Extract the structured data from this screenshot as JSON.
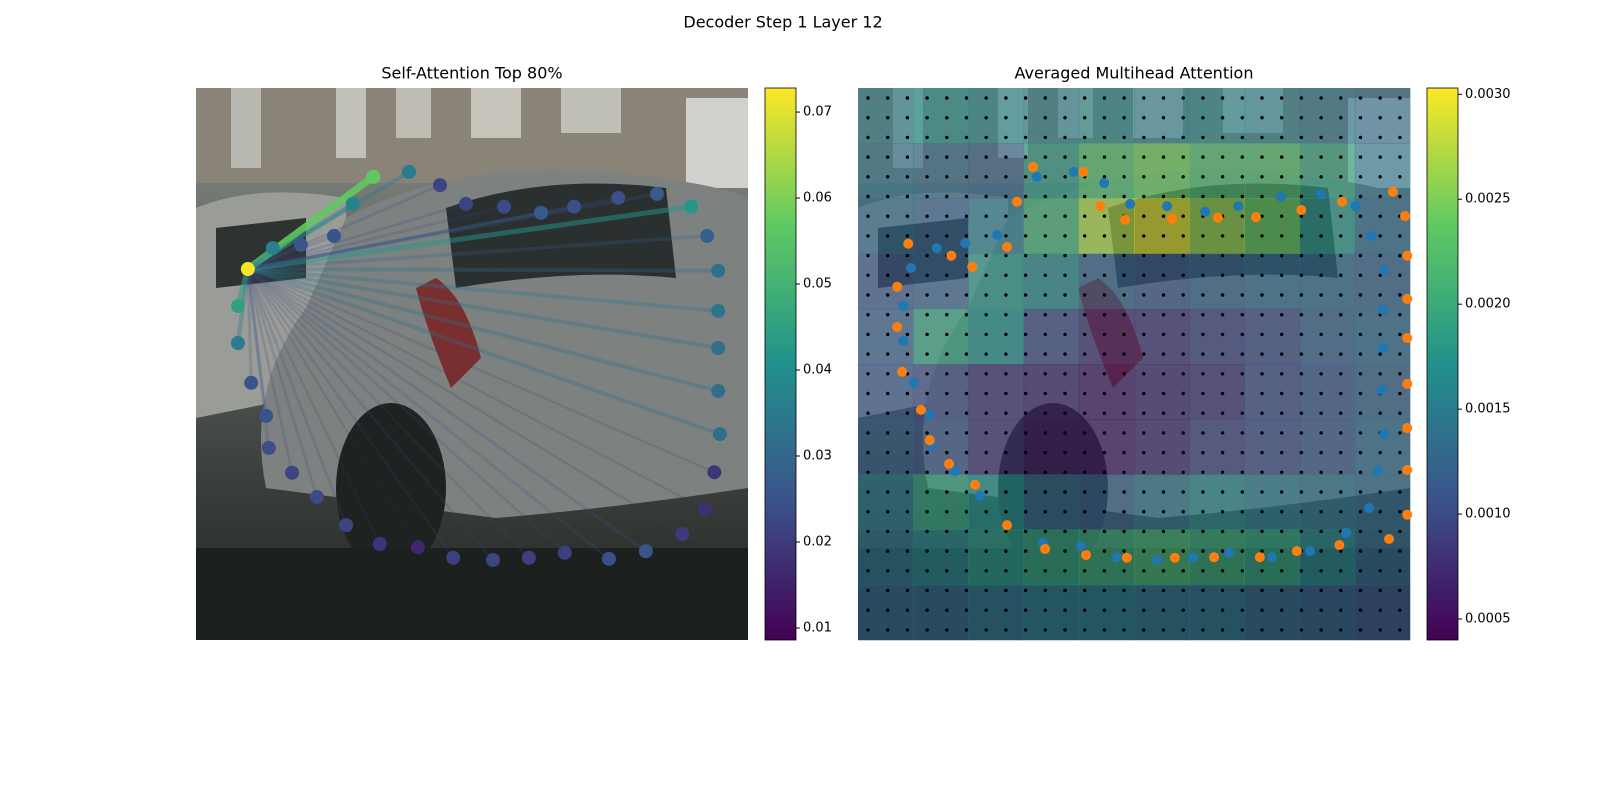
{
  "title": "Decoder Step 1 Layer 12",
  "chart_data": [
    {
      "type": "attention",
      "title": "Self-Attention Top 80%",
      "colormap": "viridis",
      "query_index": 0,
      "xlim": [
        0,
        100
      ],
      "ylim": [
        100,
        0
      ],
      "x": [
        9.4,
        7.6,
        7.6,
        10.0,
        12.7,
        13.2,
        17.4,
        21.9,
        27.2,
        33.3,
        40.2,
        46.6,
        53.8,
        60.3,
        66.8,
        74.8,
        81.5,
        88.1,
        92.2,
        93.9,
        94.9,
        94.6,
        94.6,
        94.6,
        94.6,
        92.6,
        89.7,
        83.5,
        76.5,
        68.5,
        62.5,
        55.8,
        48.9,
        44.2,
        38.6,
        32.1,
        28.4,
        25.0,
        19.0,
        13.9
      ],
      "y": [
        67.2,
        60.5,
        53.8,
        46.6,
        40.6,
        34.8,
        30.3,
        25.9,
        20.8,
        17.4,
        16.8,
        14.9,
        14.5,
        14.9,
        15.8,
        14.7,
        16.1,
        19.2,
        23.7,
        30.4,
        37.3,
        45.1,
        52.9,
        59.6,
        66.9,
        73.2,
        78.5,
        80.8,
        80.1,
        78.5,
        77.4,
        78.5,
        79.0,
        82.4,
        84.8,
        83.9,
        79.0,
        73.2,
        71.6,
        71.0
      ],
      "values": [
        0.072,
        0.045,
        0.035,
        0.025,
        0.025,
        0.024,
        0.022,
        0.023,
        0.022,
        0.019,
        0.016,
        0.021,
        0.022,
        0.021,
        0.021,
        0.024,
        0.025,
        0.02,
        0.018,
        0.019,
        0.032,
        0.032,
        0.032,
        0.033,
        0.032,
        0.028,
        0.042,
        0.027,
        0.024,
        0.024,
        0.027,
        0.023,
        0.022,
        0.022,
        0.035,
        0.057,
        0.037,
        0.025,
        0.026,
        0.036
      ],
      "clim": [
        0.0086,
        0.0728
      ],
      "cticks": [
        0.01,
        0.02,
        0.03,
        0.04,
        0.05,
        0.06,
        0.07
      ]
    },
    {
      "type": "heatmap",
      "title": "Averaged Multihead Attention",
      "colormap": "viridis",
      "xlim": [
        0,
        100
      ],
      "ylim": [
        100,
        0
      ],
      "values": [
        [
          0.0015,
          0.0017,
          0.0016,
          0.0015,
          0.0016,
          0.0015,
          0.0016,
          0.0015,
          0.0014,
          0.0013
        ],
        [
          0.0014,
          0.0013,
          0.0012,
          0.0018,
          0.0022,
          0.0024,
          0.0022,
          0.0022,
          0.0019,
          0.0014
        ],
        [
          0.0013,
          0.0012,
          0.0015,
          0.0021,
          0.0027,
          0.0029,
          0.0026,
          0.0024,
          0.0018,
          0.0013
        ],
        [
          0.0011,
          0.0012,
          0.0018,
          0.0016,
          0.0012,
          0.0011,
          0.0012,
          0.0013,
          0.0013,
          0.0012
        ],
        [
          0.0012,
          0.0019,
          0.0017,
          0.001,
          0.0008,
          0.0008,
          0.0009,
          0.001,
          0.0012,
          0.0013
        ],
        [
          0.0011,
          0.001,
          0.0008,
          0.0007,
          0.0006,
          0.0007,
          0.0008,
          0.001,
          0.0011,
          0.0012
        ],
        [
          0.0012,
          0.0011,
          0.0008,
          0.0006,
          0.0006,
          0.0007,
          0.0009,
          0.001,
          0.0011,
          0.0013
        ],
        [
          0.0015,
          0.0019,
          0.0017,
          0.0013,
          0.0012,
          0.0014,
          0.0016,
          0.0015,
          0.0014,
          0.0013
        ],
        [
          0.0014,
          0.0016,
          0.0018,
          0.0019,
          0.002,
          0.0021,
          0.002,
          0.0019,
          0.0016,
          0.0013
        ],
        [
          0.0013,
          0.0013,
          0.0014,
          0.0015,
          0.0015,
          0.0014,
          0.0014,
          0.0013,
          0.0012,
          0.0011
        ]
      ],
      "clim": [
        0.0004,
        0.00303
      ],
      "cticks": [
        0.0005,
        {
          "value": 0.001,
          "label": "0.0010"
        },
        0.0015,
        {
          "value": 0.002,
          "label": "0.0020"
        },
        0.0025,
        {
          "value": 0.003,
          "label": "0.0030"
        }
      ],
      "series": [
        {
          "color": "#1f77b4",
          "x": [
            8.2,
            8.2,
            9.6,
            14.3,
            19.4,
            25.2,
            32.4,
            39.1,
            44.6,
            49.3,
            56.0,
            62.9,
            68.9,
            76.6,
            83.9,
            90.1,
            93.0,
            95.3,
            95.1,
            95.1,
            94.9,
            95.3,
            94.2,
            92.6,
            88.4,
            81.9,
            75.0,
            67.2,
            60.7,
            54.2,
            46.9,
            40.4,
            33.5,
            22.1,
            17.6,
            13.4,
            13.0,
            10.1
          ],
          "y": [
            54.2,
            60.5,
            67.4,
            71.0,
            71.9,
            73.4,
            83.9,
            84.8,
            82.8,
            79.0,
            78.6,
            77.6,
            78.6,
            80.3,
            80.8,
            78.6,
            73.2,
            67.0,
            59.8,
            52.9,
            45.3,
            37.3,
            30.6,
            23.9,
            19.4,
            16.1,
            15.0,
            15.8,
            14.9,
            14.5,
            15.0,
            17.0,
            17.6,
            26.1,
            30.6,
            35.2,
            40.8,
            46.6
          ]
        },
        {
          "color": "#ff7f0e",
          "x": [
            7.1,
            7.1,
            9.1,
            16.9,
            20.7,
            27.0,
            28.8,
            31.7,
            40.8,
            43.9,
            48.4,
            56.9,
            65.2,
            72.1,
            80.3,
            87.7,
            96.9,
            99.1,
            99.5,
            99.5,
            99.5,
            99.5,
            99.5,
            99.5,
            99.5,
            96.2,
            87.2,
            79.5,
            72.8,
            64.5,
            57.4,
            48.7,
            41.3,
            33.9,
            27.0,
            21.2,
            16.5,
            13.0,
            11.4,
            8.0
          ],
          "y": [
            56.7,
            64.0,
            71.8,
            69.6,
            67.6,
            71.2,
            79.4,
            85.7,
            84.8,
            78.6,
            76.1,
            76.3,
            76.5,
            76.6,
            77.9,
            79.4,
            81.2,
            76.8,
            69.6,
            61.8,
            54.7,
            46.4,
            38.4,
            30.8,
            22.7,
            18.3,
            17.2,
            16.1,
            15.0,
            15.0,
            14.9,
            14.9,
            15.4,
            16.5,
            20.8,
            28.1,
            31.9,
            36.2,
            41.7,
            48.6
          ]
        }
      ]
    }
  ]
}
